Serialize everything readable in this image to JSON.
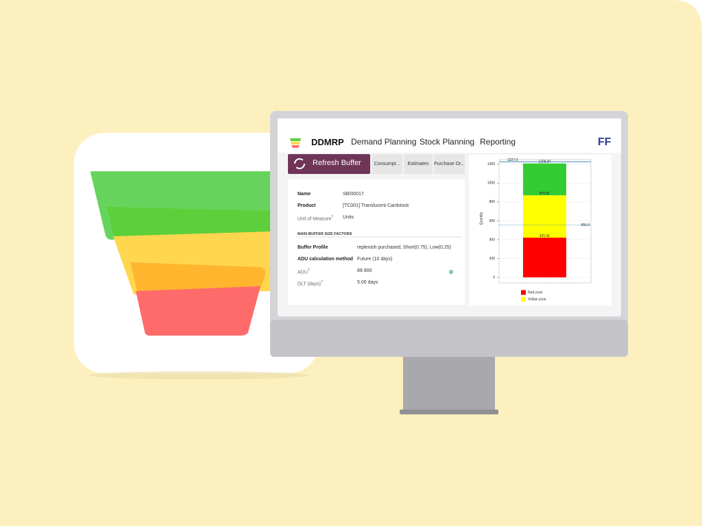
{
  "nav": {
    "app": "DDMRP",
    "menu": [
      "Demand Planning",
      "Stock Planning",
      "Reporting"
    ],
    "logo": "FF"
  },
  "buttons": [
    "Refresh Buffer",
    "Consumpt...",
    "Estimates",
    "Purchase Or..."
  ],
  "form": {
    "fields": [
      {
        "label": "Name",
        "value": "SB/00017"
      },
      {
        "label": "Product",
        "value": "[TC001] Translucent Cardstock"
      },
      {
        "label": "Unit of Measure",
        "help": "?",
        "value": "Units"
      }
    ],
    "section": "MAIN BUFFER SIZE FACTORS",
    "factors": [
      {
        "label": "Buffer Profile",
        "value": "replenish purchased, Short(0.75), Low(0.25)"
      },
      {
        "label": "ADU calculation method",
        "value": "Future (10 days)"
      },
      {
        "label": "ADU",
        "help": "?",
        "value": "89.900"
      },
      {
        "label": "DLT (days)",
        "help": "?",
        "value": "5.00 days"
      }
    ]
  },
  "chart_data": {
    "type": "bar",
    "stacked": true,
    "ylabel": "Quantity",
    "ylim": [
      0,
      1250
    ],
    "yticks": [
      0,
      200,
      400,
      600,
      800,
      1000,
      1200
    ],
    "grid": true,
    "series": [
      {
        "name": "Red zone",
        "color": "#ff0000",
        "values": [
          421.41
        ]
      },
      {
        "name": "Yellow zone",
        "color": "#ffff00",
        "values": [
          449.4
        ]
      },
      {
        "color": "#33cc33",
        "values": [
          338.03
        ]
      }
    ],
    "bar_labels": [
      421.41,
      870.81,
      1208.84
    ],
    "ref_lines": [
      {
        "value": 1227,
        "label": "1227.0",
        "color": "#1f77b4",
        "style": "solid"
      },
      {
        "value": 556,
        "label": "556.0",
        "color": "#1f77b4",
        "style": "dotted"
      }
    ]
  }
}
